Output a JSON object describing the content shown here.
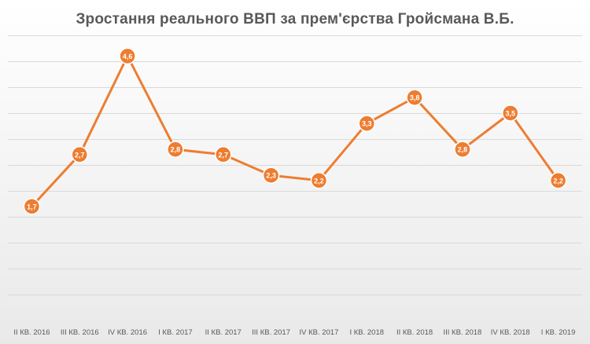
{
  "chart_data": {
    "type": "line",
    "title": "Зростання реального ВВП за прем'єрства Гройсмана В.Б.",
    "categories": [
      "ІІ КВ. 2016",
      "ІІІ КВ. 2016",
      "ІV КВ. 2016",
      "І КВ. 2017",
      "ІІ КВ. 2017",
      "ІІІ КВ. 2017",
      "ІV КВ. 2017",
      "І КВ. 2018",
      "ІІ КВ. 2018",
      "ІІІ КВ. 2018",
      "ІV КВ. 2018",
      "І КВ. 2019"
    ],
    "series": [
      {
        "values": [
          1.7,
          2.7,
          4.6,
          2.8,
          2.7,
          2.3,
          2.2,
          3.3,
          3.8,
          2.8,
          3.5,
          2.2
        ],
        "labels": [
          "1,7",
          "2,7",
          "4,6",
          "2,8",
          "2,7",
          "2,3",
          "2,2",
          "3,3",
          "3,8",
          "2,8",
          "3,5",
          "2,2"
        ],
        "color": "#ED7D31"
      }
    ],
    "ylim": [
      0,
      5
    ],
    "grid": true,
    "gridline_color": "#d9d9d9",
    "label_text_color": "#ffffff",
    "tick_label_color": "#595959"
  }
}
